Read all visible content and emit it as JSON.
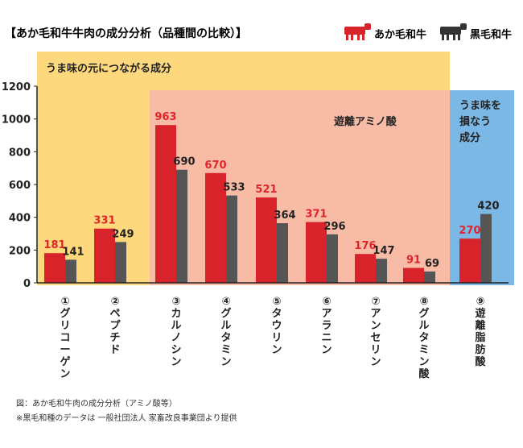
{
  "chart_data": {
    "type": "bar",
    "title": "【あか毛和牛牛肉の成分分析（品種間の比較）】",
    "ylim": [
      0,
      1200
    ],
    "yticks": [
      "0",
      "200",
      "400",
      "600",
      "800",
      "1000",
      "1200"
    ],
    "categories": [
      [
        "①",
        "グ",
        "リ",
        "コ",
        "ー",
        "ゲ",
        "ン"
      ],
      [
        "②",
        "ペ",
        "プ",
        "チ",
        "ド"
      ],
      [
        "③",
        "カ",
        "ル",
        "ノ",
        "シ",
        "ン"
      ],
      [
        "④",
        "グ",
        "ル",
        "タ",
        "ミ",
        "ン"
      ],
      [
        "⑤",
        "タ",
        "ウ",
        "リ",
        "ン"
      ],
      [
        "⑥",
        "ア",
        "ラ",
        "ニ",
        "ン"
      ],
      [
        "⑦",
        "ア",
        "ン",
        "セ",
        "リ",
        "ン"
      ],
      [
        "⑧",
        "グ",
        "ル",
        "タ",
        "ミ",
        "ン",
        "酸"
      ],
      [
        "⑨",
        "遊",
        "離",
        "脂",
        "肪",
        "酸"
      ]
    ],
    "series": [
      {
        "name": "あか毛和牛",
        "values": [
          181,
          331,
          963,
          670,
          521,
          371,
          176,
          91,
          270
        ],
        "labels": [
          "181",
          "331",
          "963",
          "670",
          "521",
          "371",
          "176",
          "91",
          "270"
        ]
      },
      {
        "name": "黒毛和牛",
        "values": [
          141,
          249,
          690,
          533,
          364,
          296,
          147,
          69,
          420
        ],
        "labels": [
          "141",
          "249",
          "690",
          "533",
          "364",
          "296",
          "147",
          "69",
          "420"
        ]
      }
    ],
    "regions": [
      {
        "label": "うま味の元につながる成分",
        "color": "#fdd87c"
      },
      {
        "label": "遊離アミノ酸",
        "color": "#f7bba6"
      },
      {
        "label_lines": [
          "うま味を",
          "損なう",
          "成分"
        ],
        "color": "#7cb8e6"
      }
    ],
    "colors": {
      "red": "#d9232a",
      "dark": "#555555",
      "value_red": "#e0252a"
    },
    "footnotes": [
      "図：あか毛和牛肉の成分分析（アミノ酸等）",
      "※黒毛和種のデータは 一般社団法人 家畜改良事業団より提供"
    ]
  }
}
